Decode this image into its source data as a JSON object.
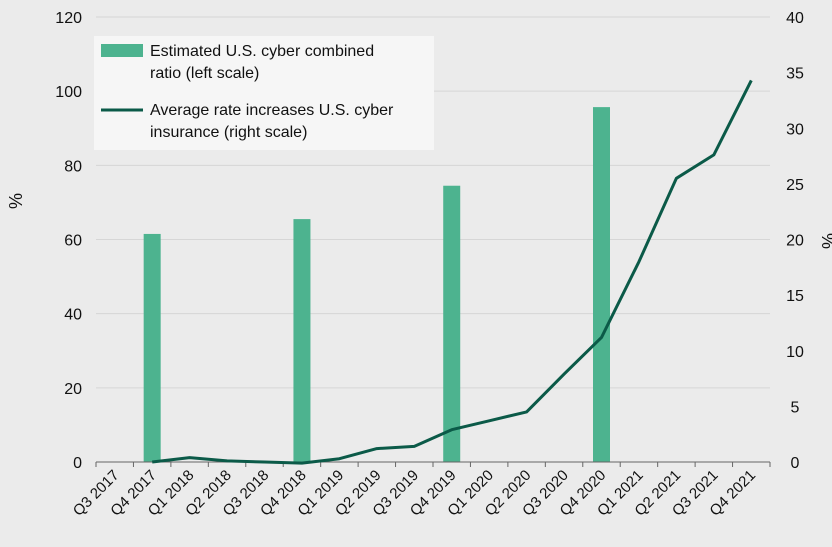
{
  "chart_data": {
    "type": "bar",
    "categories": [
      "Q3 2017",
      "Q4 2017",
      "Q1 2018",
      "Q2 2018",
      "Q3 2018",
      "Q4 2018",
      "Q1 2019",
      "Q2 2019",
      "Q3 2019",
      "Q4 2019",
      "Q1 2020",
      "Q2 2020",
      "Q3 2020",
      "Q4 2020",
      "Q1 2021",
      "Q2 2021",
      "Q3 2021",
      "Q4 2021"
    ],
    "series": [
      {
        "name": "Estimated U.S. cyber combined ratio (left scale)",
        "kind": "bar",
        "axis": "left",
        "color": "#4db38f",
        "values": [
          null,
          61.5,
          null,
          null,
          null,
          65.5,
          null,
          null,
          null,
          74.5,
          null,
          null,
          null,
          95.7,
          null,
          null,
          null,
          null
        ]
      },
      {
        "name": "Average rate increases U.S. cyber insurance (right scale)",
        "kind": "line",
        "axis": "right",
        "color": "#0b5a48",
        "values": [
          null,
          0.0,
          0.4,
          0.1,
          0.0,
          -0.1,
          0.3,
          1.2,
          1.4,
          2.9,
          3.7,
          4.5,
          7.9,
          11.2,
          18.0,
          25.5,
          27.6,
          34.3
        ]
      }
    ],
    "ylabel_left": "%",
    "ylabel_right": "%",
    "ylim_left": [
      0,
      120
    ],
    "ylim_right": [
      0,
      40
    ],
    "yticks_left": [
      "0",
      "20",
      "40",
      "60",
      "80",
      "100",
      "120"
    ],
    "yticks_right": [
      "0",
      "5",
      "10",
      "15",
      "20",
      "25",
      "30",
      "35",
      "40"
    ],
    "grid": true,
    "legend_position": "top-left"
  }
}
